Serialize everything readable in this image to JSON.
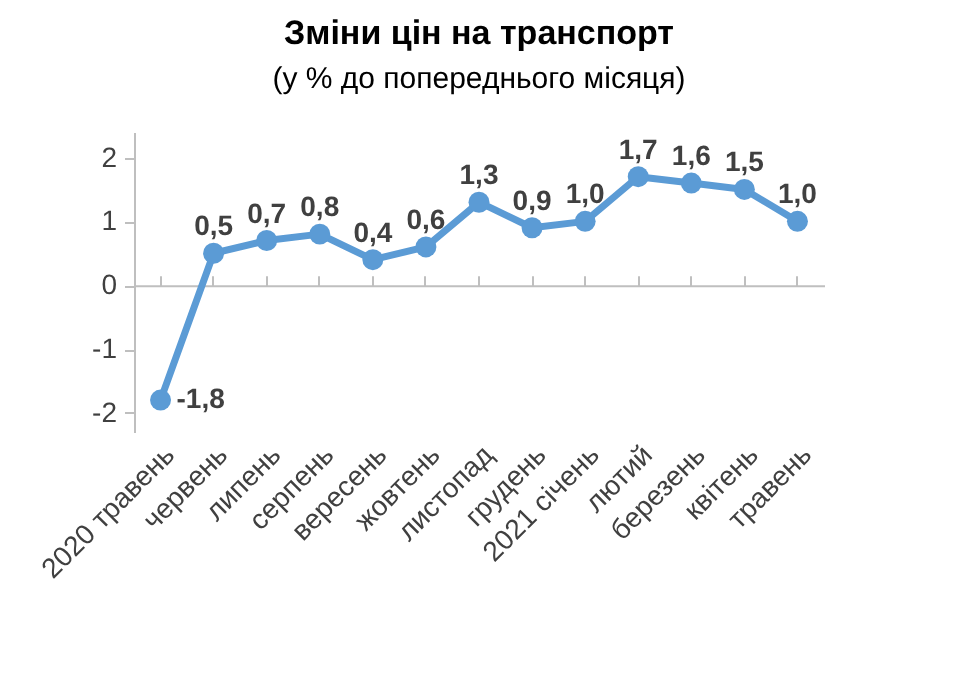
{
  "chart_data": {
    "type": "line",
    "title": "Зміни цін на транспорт",
    "subtitle": "(у % до попереднього місяця)",
    "categories": [
      "2020 травень",
      "червень",
      "липень",
      "серпень",
      "вересень",
      "жовтень",
      "листопад",
      "грудень",
      "2021 січень",
      "лютий",
      "березень",
      "квітень",
      "травень"
    ],
    "series": [
      {
        "color": "#5b9bd5",
        "values": [
          -1.8,
          0.5,
          0.7,
          0.8,
          0.4,
          0.6,
          1.3,
          0.9,
          1.0,
          1.7,
          1.6,
          1.5,
          1.0
        ],
        "value_labels": [
          "-1,8",
          "0,5",
          "0,7",
          "0,8",
          "0,4",
          "0,6",
          "1,3",
          "0,9",
          "1,0",
          "1,7",
          "1,6",
          "1,5",
          "1,0"
        ]
      }
    ],
    "ylim": [
      -2.3,
      2.4
    ],
    "yticks": [
      -2,
      -1,
      0,
      1,
      2
    ],
    "legend": false,
    "marker": "circle",
    "line_style": "solid"
  }
}
